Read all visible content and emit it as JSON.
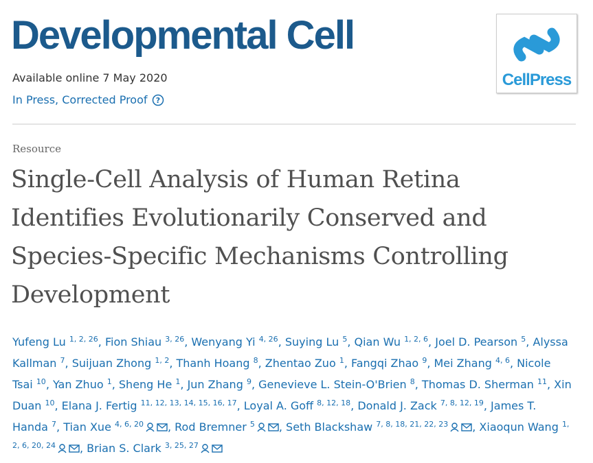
{
  "journal": {
    "title": "Developmental Cell",
    "available": "Available online 7 May 2020",
    "status": "In Press, Corrected Proof",
    "logo": "CellPress"
  },
  "article": {
    "type": "Resource",
    "title_lines": [
      "Single-Cell Analysis of Human Retina",
      "Identifies Evolutionarily Conserved and",
      "Species-Specific Mechanisms Controlling",
      "Development"
    ],
    "author_separator": ", ",
    "authors": [
      {
        "name": "Yufeng Lu",
        "affiliations": "1, 2, 26",
        "corresponding": false
      },
      {
        "name": "Fion Shiau",
        "affiliations": "3, 26",
        "corresponding": false
      },
      {
        "name": "Wenyang Yi",
        "affiliations": "4, 26",
        "corresponding": false
      },
      {
        "name": "Suying Lu",
        "affiliations": "5",
        "corresponding": false
      },
      {
        "name": "Qian Wu",
        "affiliations": "1, 2, 6",
        "corresponding": false
      },
      {
        "name": "Joel D. Pearson",
        "affiliations": "5",
        "corresponding": false
      },
      {
        "name": "Alyssa Kallman",
        "affiliations": "7",
        "corresponding": false
      },
      {
        "name": "Suijuan Zhong",
        "affiliations": "1, 2",
        "corresponding": false
      },
      {
        "name": "Thanh Hoang",
        "affiliations": "8",
        "corresponding": false
      },
      {
        "name": "Zhentao Zuo",
        "affiliations": "1",
        "corresponding": false
      },
      {
        "name": "Fangqi Zhao",
        "affiliations": "9",
        "corresponding": false
      },
      {
        "name": "Mei Zhang",
        "affiliations": "4, 6",
        "corresponding": false
      },
      {
        "name": "Nicole Tsai",
        "affiliations": "10",
        "corresponding": false
      },
      {
        "name": "Yan Zhuo",
        "affiliations": "1",
        "corresponding": false
      },
      {
        "name": "Sheng He",
        "affiliations": "1",
        "corresponding": false
      },
      {
        "name": "Jun Zhang",
        "affiliations": "9",
        "corresponding": false
      },
      {
        "name": "Genevieve L. Stein-O'Brien",
        "affiliations": "8",
        "corresponding": false
      },
      {
        "name": "Thomas D. Sherman",
        "affiliations": "11",
        "corresponding": false
      },
      {
        "name": "Xin Duan",
        "affiliations": "10",
        "corresponding": false
      },
      {
        "name": "Elana J. Fertig",
        "affiliations": "11, 12, 13, 14, 15, 16, 17",
        "corresponding": false
      },
      {
        "name": "Loyal A. Goff",
        "affiliations": "8, 12, 18",
        "corresponding": false
      },
      {
        "name": "Donald J. Zack",
        "affiliations": "7, 8, 12, 19",
        "corresponding": false
      },
      {
        "name": "James T. Handa",
        "affiliations": "7",
        "corresponding": false
      },
      {
        "name": "Tian Xue",
        "affiliations": "4, 6, 20",
        "corresponding": true
      },
      {
        "name": "Rod Bremner",
        "affiliations": "5",
        "corresponding": true
      },
      {
        "name": "Seth Blackshaw",
        "affiliations": "7, 8, 18, 21, 22, 23",
        "corresponding": true
      },
      {
        "name": "Xiaoqun Wang",
        "affiliations": "1, 2, 6, 20, 24",
        "corresponding": true
      },
      {
        "name": "Brian S. Clark",
        "affiliations": "3, 25, 27",
        "corresponding": true
      }
    ]
  }
}
